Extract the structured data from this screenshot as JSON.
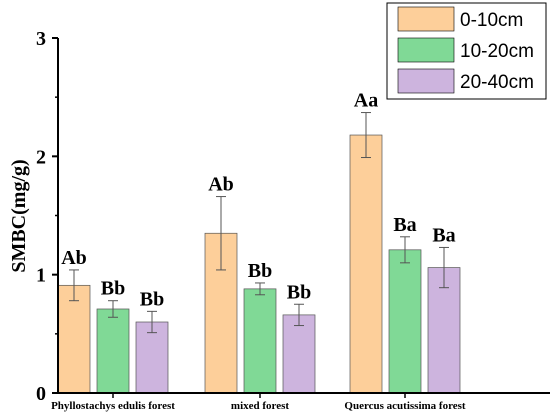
{
  "chart_data": {
    "type": "bar",
    "title": "",
    "xlabel": "",
    "ylabel": "SMBC(mg/g)",
    "ylim": [
      0,
      3
    ],
    "yticks": [
      "0",
      "1",
      "2",
      "3"
    ],
    "categories": [
      "Phyllostachys edulis forest",
      "mixed forest",
      "Quercus acutissima forest"
    ],
    "legend_position": "top-right",
    "grid": false,
    "series": [
      {
        "name": "0-10cm",
        "color": "#FDCF9A",
        "values": [
          0.91,
          1.35,
          2.18
        ],
        "errors": [
          0.13,
          0.31,
          0.19
        ],
        "labels": [
          "Ab",
          "Ab",
          "Aa"
        ]
      },
      {
        "name": "10-20cm",
        "color": "#80D996",
        "values": [
          0.71,
          0.88,
          1.21
        ],
        "errors": [
          0.07,
          0.05,
          0.11
        ],
        "labels": [
          "Bb",
          "Bb",
          "Ba"
        ]
      },
      {
        "name": "20-40cm",
        "color": "#CDB4DE",
        "values": [
          0.6,
          0.66,
          1.06
        ],
        "errors": [
          0.09,
          0.09,
          0.17
        ],
        "labels": [
          "Bb",
          "Bb",
          "Ba"
        ]
      }
    ]
  }
}
